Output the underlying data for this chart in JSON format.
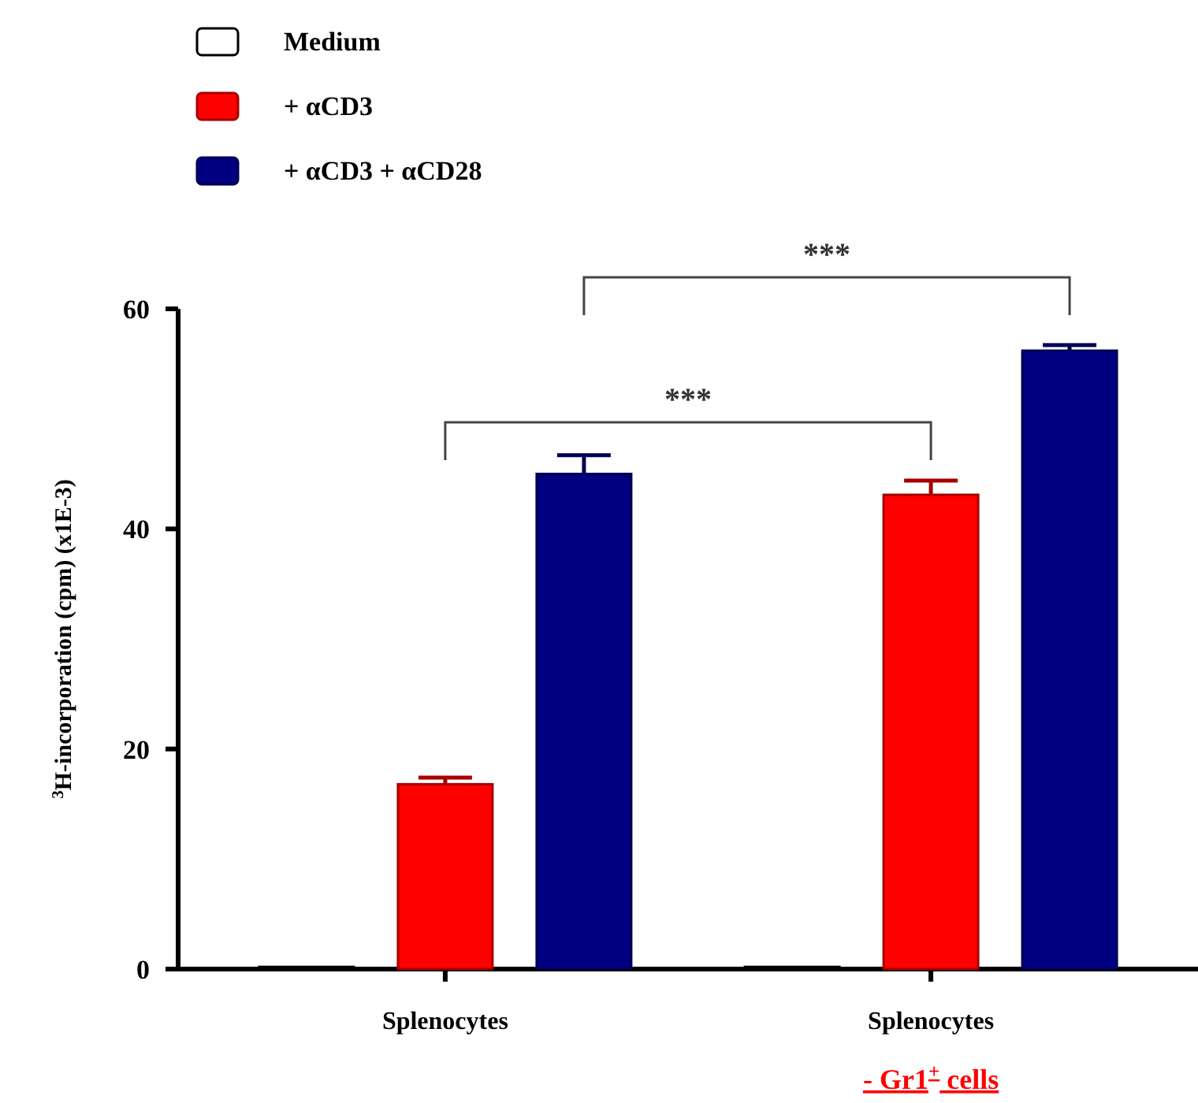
{
  "chart_data": {
    "type": "bar",
    "ylabel": "$^{3}$H-incorporation (cpm) (x1E-3)",
    "categories": [
      "Splenocytes",
      "Splenocytes\n- Gr1$^{+}$ cells"
    ],
    "series": [
      {
        "name": "Medium",
        "color": "#ffffff",
        "values": [
          0.2,
          0.2
        ]
      },
      {
        "name": "+ αCD3",
        "color": "#ff0000",
        "values": [
          16.8,
          43.1
        ],
        "errors": [
          0.6,
          1.3
        ]
      },
      {
        "name": "+ αCD3 + αCD28",
        "color": "#000080",
        "values": [
          45.0,
          56.2
        ],
        "errors": [
          1.7,
          0.5
        ]
      }
    ],
    "ylim": [
      0,
      60
    ],
    "yticks": [
      0,
      20,
      40,
      60
    ],
    "legend": "top left",
    "grid": false,
    "annotations": [
      "***",
      "***"
    ]
  }
}
